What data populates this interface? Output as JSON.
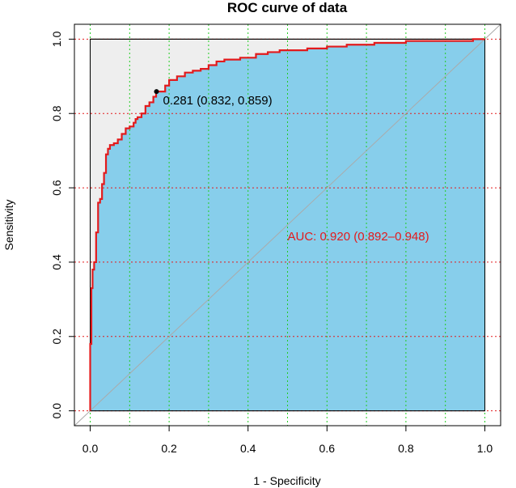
{
  "chart_data": {
    "type": "line",
    "title": "ROC curve of data",
    "xlabel": "1 - Specificity",
    "ylabel": "Sensitivity",
    "xlim": [
      -0.04,
      1.04
    ],
    "ylim": [
      -0.04,
      1.04
    ],
    "x_ticks": [
      0.0,
      0.2,
      0.4,
      0.6,
      0.8,
      1.0
    ],
    "x_tick_labels": [
      "0.0",
      "0.2",
      "0.4",
      "0.6",
      "0.8",
      "1.0"
    ],
    "y_ticks": [
      0.0,
      0.2,
      0.4,
      0.6,
      0.8,
      1.0
    ],
    "y_tick_labels": [
      "0.0",
      "0.2",
      "0.4",
      "0.6",
      "0.8",
      "1.0"
    ],
    "x_grid_lines": [
      0.0,
      0.1,
      0.2,
      0.3,
      0.4,
      0.5,
      0.6,
      0.7,
      0.8,
      0.9,
      1.0
    ],
    "series": [
      {
        "name": "ROC",
        "color": "#e31a1c",
        "fill_color": "#87ceeb",
        "points": [
          [
            0.0,
            0.0
          ],
          [
            0.0,
            0.18
          ],
          [
            0.003,
            0.18
          ],
          [
            0.003,
            0.33
          ],
          [
            0.006,
            0.33
          ],
          [
            0.006,
            0.38
          ],
          [
            0.01,
            0.38
          ],
          [
            0.01,
            0.4
          ],
          [
            0.015,
            0.4
          ],
          [
            0.015,
            0.48
          ],
          [
            0.02,
            0.48
          ],
          [
            0.02,
            0.56
          ],
          [
            0.025,
            0.56
          ],
          [
            0.025,
            0.57
          ],
          [
            0.03,
            0.57
          ],
          [
            0.03,
            0.61
          ],
          [
            0.035,
            0.61
          ],
          [
            0.035,
            0.64
          ],
          [
            0.04,
            0.64
          ],
          [
            0.04,
            0.69
          ],
          [
            0.045,
            0.69
          ],
          [
            0.045,
            0.705
          ],
          [
            0.05,
            0.705
          ],
          [
            0.05,
            0.715
          ],
          [
            0.06,
            0.715
          ],
          [
            0.06,
            0.72
          ],
          [
            0.07,
            0.72
          ],
          [
            0.07,
            0.73
          ],
          [
            0.08,
            0.73
          ],
          [
            0.08,
            0.745
          ],
          [
            0.09,
            0.745
          ],
          [
            0.09,
            0.76
          ],
          [
            0.1,
            0.76
          ],
          [
            0.1,
            0.765
          ],
          [
            0.11,
            0.765
          ],
          [
            0.11,
            0.775
          ],
          [
            0.115,
            0.775
          ],
          [
            0.115,
            0.785
          ],
          [
            0.12,
            0.785
          ],
          [
            0.12,
            0.79
          ],
          [
            0.13,
            0.79
          ],
          [
            0.13,
            0.8
          ],
          [
            0.14,
            0.8
          ],
          [
            0.14,
            0.82
          ],
          [
            0.15,
            0.82
          ],
          [
            0.15,
            0.83
          ],
          [
            0.16,
            0.83
          ],
          [
            0.16,
            0.845
          ],
          [
            0.167,
            0.845
          ],
          [
            0.167,
            0.859
          ],
          [
            0.19,
            0.859
          ],
          [
            0.19,
            0.875
          ],
          [
            0.2,
            0.875
          ],
          [
            0.2,
            0.89
          ],
          [
            0.22,
            0.89
          ],
          [
            0.22,
            0.9
          ],
          [
            0.24,
            0.9
          ],
          [
            0.24,
            0.91
          ],
          [
            0.26,
            0.91
          ],
          [
            0.26,
            0.915
          ],
          [
            0.28,
            0.915
          ],
          [
            0.28,
            0.92
          ],
          [
            0.3,
            0.92
          ],
          [
            0.3,
            0.93
          ],
          [
            0.32,
            0.93
          ],
          [
            0.32,
            0.94
          ],
          [
            0.34,
            0.94
          ],
          [
            0.34,
            0.945
          ],
          [
            0.38,
            0.945
          ],
          [
            0.38,
            0.95
          ],
          [
            0.42,
            0.95
          ],
          [
            0.42,
            0.96
          ],
          [
            0.45,
            0.96
          ],
          [
            0.45,
            0.965
          ],
          [
            0.48,
            0.965
          ],
          [
            0.48,
            0.97
          ],
          [
            0.55,
            0.97
          ],
          [
            0.55,
            0.975
          ],
          [
            0.6,
            0.975
          ],
          [
            0.6,
            0.98
          ],
          [
            0.65,
            0.98
          ],
          [
            0.65,
            0.985
          ],
          [
            0.72,
            0.985
          ],
          [
            0.72,
            0.99
          ],
          [
            0.8,
            0.99
          ],
          [
            0.8,
            0.995
          ],
          [
            0.97,
            0.995
          ],
          [
            0.97,
            1.0
          ],
          [
            1.0,
            1.0
          ]
        ]
      }
    ],
    "diagonal_reference": [
      [
        -0.04,
        -0.04
      ],
      [
        1.04,
        1.04
      ]
    ],
    "threshold_point": {
      "x": 0.168,
      "y": 0.859
    },
    "annotations": {
      "threshold_label": "0.281 (0.832, 0.859)",
      "auc_label": "AUC: 0.920 (0.892–0.948)",
      "auc_color": "#e31a1c"
    }
  }
}
